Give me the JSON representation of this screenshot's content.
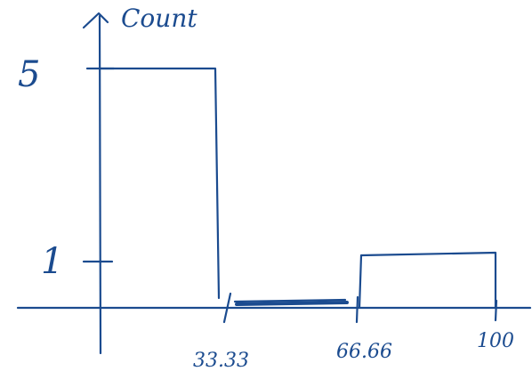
{
  "chart_data": {
    "type": "bar",
    "y_axis_label": "Count",
    "y_ticks": [
      "5",
      "1"
    ],
    "x_ticks": [
      "33.33",
      "66.66",
      "100"
    ],
    "bins": [
      {
        "from": 0,
        "to": 33.33,
        "count": 5
      },
      {
        "from": 33.33,
        "to": 66.66,
        "count": 0
      },
      {
        "from": 66.66,
        "to": 100,
        "count": 1
      }
    ],
    "ink_color": "#1b4b8f"
  }
}
